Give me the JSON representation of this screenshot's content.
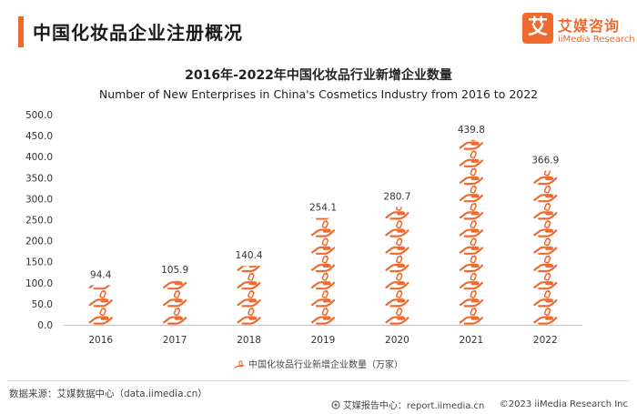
{
  "header": {
    "title": "中国化妆品企业注册概况",
    "accent_color": "#ee6a2e"
  },
  "brand": {
    "logo_char": "艾",
    "name_cn": "艾媒咨询",
    "name_en": "iiMedia Research",
    "color": "#ee6a2e"
  },
  "chart_data": {
    "type": "bar",
    "title": "2016年-2022年中国化妆品行业新增企业数量",
    "subtitle": "Number of New Enterprises in China's Cosmetics Industry from 2016 to 2022",
    "categories": [
      "2016",
      "2017",
      "2018",
      "2019",
      "2020",
      "2021",
      "2022"
    ],
    "series": [
      {
        "name": "中国化妆品行业新增企业数量（万家）",
        "values": [
          94.4,
          105.9,
          140.4,
          254.1,
          280.7,
          439.8,
          366.9
        ]
      }
    ],
    "data_labels": [
      "94.4",
      "105.9",
      "140.4",
      "254.1",
      "280.7",
      "439.8",
      "366.9"
    ],
    "ylim": [
      0,
      500
    ],
    "yticks": [
      "0.0",
      "50.0",
      "100.0",
      "150.0",
      "200.0",
      "250.0",
      "300.0",
      "350.0",
      "400.0",
      "450.0",
      "500.0"
    ],
    "grid": false,
    "legend_position": "bottom",
    "bar_style": "stacked hand-holding-bottle pictograms",
    "bar_color": "#ee6a2e"
  },
  "footer": {
    "source": "数据来源：艾媒数据中心（data.iimedia.cn）",
    "report_center": "艾媒报告中心：report.iimedia.cn",
    "copyright": "©2023  iiMedia Research  Inc"
  }
}
